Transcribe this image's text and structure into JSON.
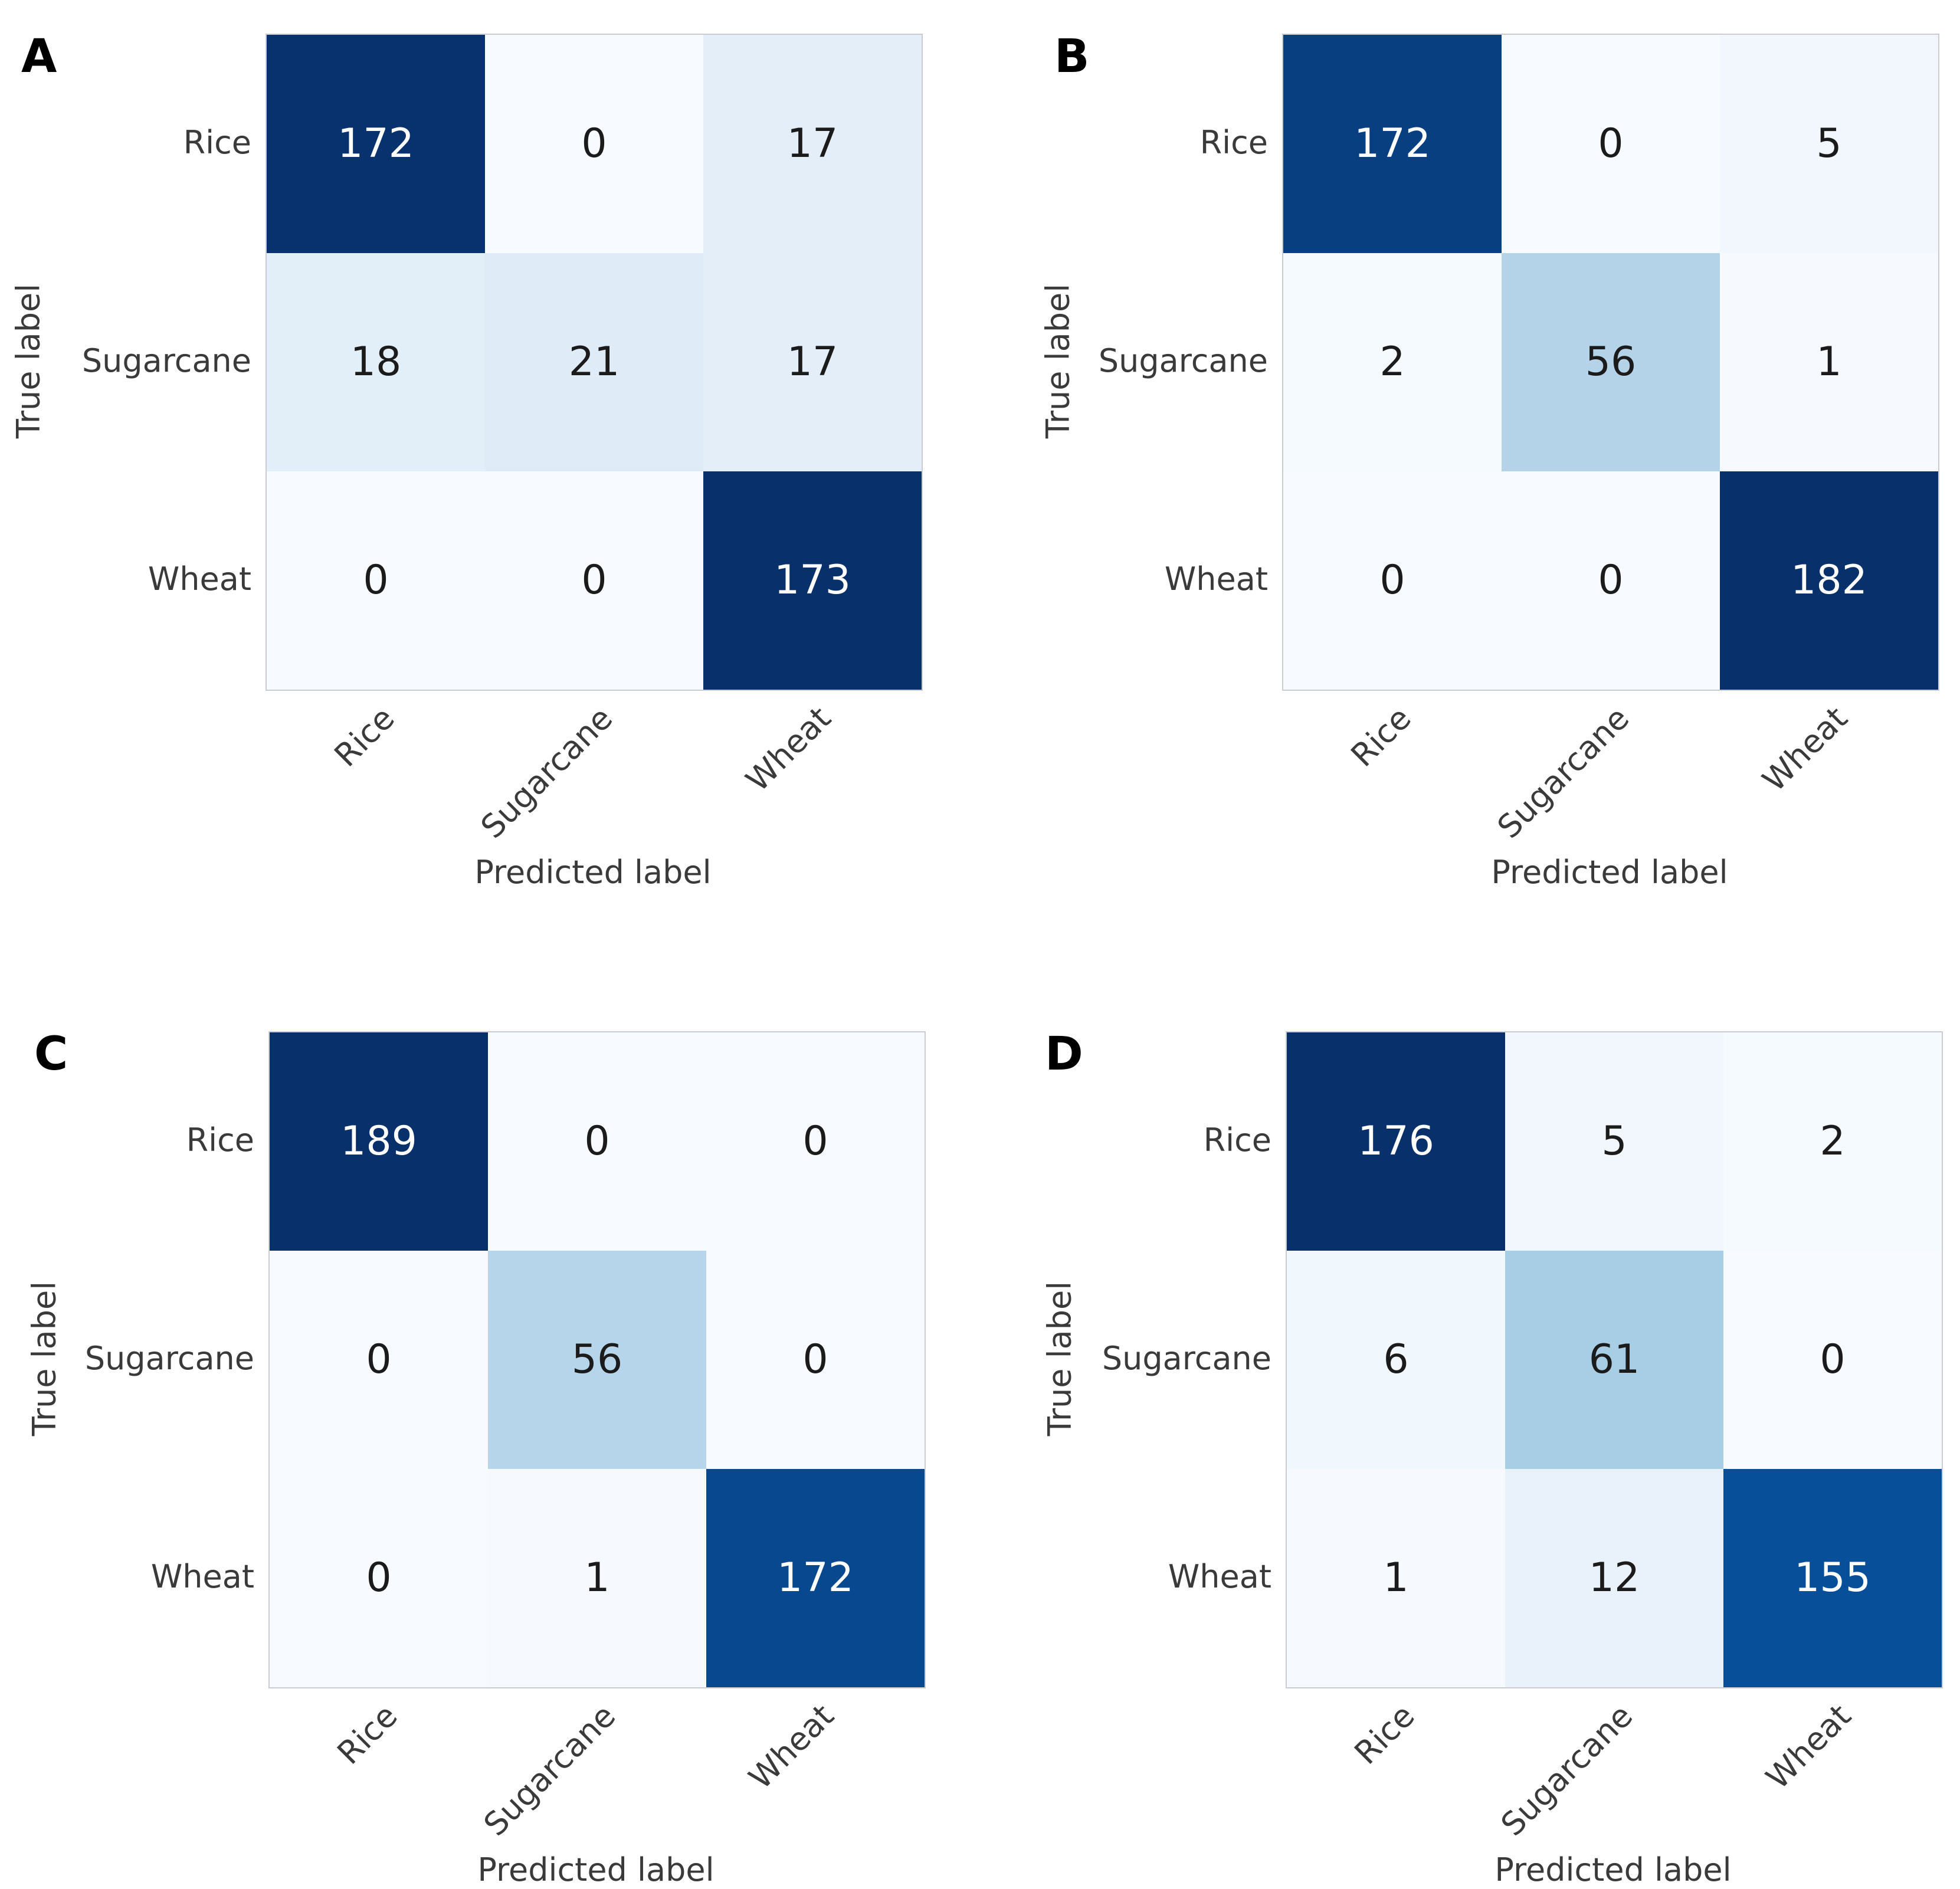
{
  "figure": {
    "xlabel": "Predicted label",
    "ylabel": "True label",
    "classes": [
      "Rice",
      "Sugarcane",
      "Wheat"
    ],
    "colors": {
      "cmap_low": "#f7fbff",
      "cmap_high": "#08306b",
      "tick_text": "#3a3a3a",
      "text_on_dark": "#ffffff",
      "text_on_light": "#1b1b1b",
      "matrix_border": "#c9cdd3"
    }
  },
  "chart_data": [
    {
      "type": "heatmap",
      "panel": "A",
      "rows": [
        "Rice",
        "Sugarcane",
        "Wheat"
      ],
      "cols": [
        "Rice",
        "Sugarcane",
        "Wheat"
      ],
      "matrix": [
        [
          172,
          0,
          17
        ],
        [
          18,
          21,
          17
        ],
        [
          0,
          0,
          173
        ]
      ],
      "vmin": 0,
      "vmax": 173,
      "xlabel": "Predicted label",
      "ylabel": "True label",
      "colormap": "Blues",
      "legend": "none",
      "grid": false
    },
    {
      "type": "heatmap",
      "panel": "B",
      "rows": [
        "Rice",
        "Sugarcane",
        "Wheat"
      ],
      "cols": [
        "Rice",
        "Sugarcane",
        "Wheat"
      ],
      "matrix": [
        [
          172,
          0,
          5
        ],
        [
          2,
          56,
          1
        ],
        [
          0,
          0,
          182
        ]
      ],
      "vmin": 0,
      "vmax": 182,
      "xlabel": "Predicted label",
      "ylabel": "True label",
      "colormap": "Blues",
      "legend": "none",
      "grid": false
    },
    {
      "type": "heatmap",
      "panel": "C",
      "rows": [
        "Rice",
        "Sugarcane",
        "Wheat"
      ],
      "cols": [
        "Rice",
        "Sugarcane",
        "Wheat"
      ],
      "matrix": [
        [
          189,
          0,
          0
        ],
        [
          0,
          56,
          0
        ],
        [
          0,
          1,
          172
        ]
      ],
      "vmin": 0,
      "vmax": 189,
      "xlabel": "Predicted label",
      "ylabel": "True label",
      "colormap": "Blues",
      "legend": "none",
      "grid": false
    },
    {
      "type": "heatmap",
      "panel": "D",
      "rows": [
        "Rice",
        "Sugarcane",
        "Wheat"
      ],
      "cols": [
        "Rice",
        "Sugarcane",
        "Wheat"
      ],
      "matrix": [
        [
          176,
          5,
          2
        ],
        [
          6,
          61,
          0
        ],
        [
          1,
          12,
          155
        ]
      ],
      "vmin": 0,
      "vmax": 176,
      "xlabel": "Predicted label",
      "ylabel": "True label",
      "colormap": "Blues",
      "legend": "none",
      "grid": false
    }
  ]
}
